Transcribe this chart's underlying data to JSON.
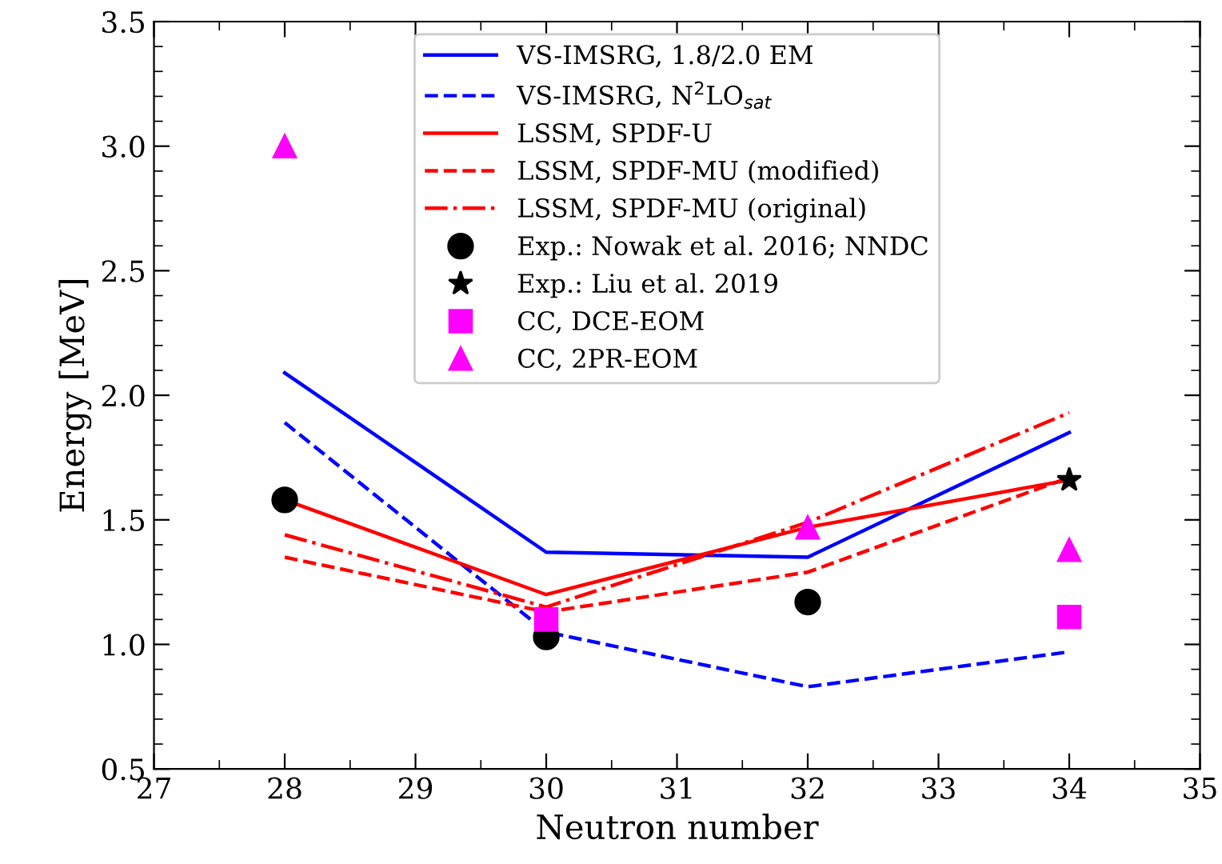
{
  "chart_data": {
    "type": "line",
    "xlabel": "Neutron number",
    "ylabel": "Energy [MeV]",
    "x": [
      28,
      30,
      32,
      34
    ],
    "xlim": [
      27,
      35
    ],
    "xticks": [
      27,
      28,
      29,
      30,
      31,
      32,
      33,
      34,
      35
    ],
    "ylim": [
      0.5,
      3.5
    ],
    "yticks": [
      {
        "value": 0.5,
        "label": "0.5"
      },
      {
        "value": 1,
        "label": "1.0"
      },
      {
        "value": 1.5,
        "label": "1.5"
      },
      {
        "value": 2,
        "label": "2.0"
      },
      {
        "value": 2.5,
        "label": "2.5"
      },
      {
        "value": 3,
        "label": "3.0"
      },
      {
        "value": 3.5,
        "label": "3.5"
      }
    ],
    "grid": false,
    "legend": "top",
    "series": [
      {
        "name": "VS-IMSRG, 1.8/2.0 EM",
        "color": "#0000ff",
        "line_style": "solid",
        "values": [
          2.09,
          1.37,
          1.35,
          1.85
        ]
      },
      {
        "name": "VS-IMSRG, N$^{2}$LO$_{sat}$",
        "color": "#0000ff",
        "line_style": "dashed",
        "values": [
          1.89,
          1.05,
          0.83,
          0.97
        ]
      },
      {
        "name": "LSSM, SPDF-U",
        "color": "#ff0000",
        "line_style": "solid",
        "values": [
          1.58,
          1.2,
          1.47,
          1.66
        ]
      },
      {
        "name": "LSSM, SPDF-MU (modified)",
        "color": "#ff0000",
        "line_style": "dashed",
        "values": [
          1.35,
          1.13,
          1.29,
          1.67
        ]
      },
      {
        "name": "LSSM, SPDF-MU (original)",
        "color": "#ff0000",
        "line_style": "dashdot",
        "values": [
          1.44,
          1.15,
          1.49,
          1.93
        ]
      },
      {
        "name": "Exp.: Nowak et al. 2016; NNDC",
        "type": "scatter",
        "marker": "circle",
        "color": "#000000",
        "x": [
          28,
          30,
          32
        ],
        "values": [
          1.58,
          1.03,
          1.17
        ]
      },
      {
        "name": "Exp.: Liu et al. 2019",
        "type": "scatter",
        "marker": "star",
        "color": "#000000",
        "x": [
          34
        ],
        "values": [
          1.66
        ]
      },
      {
        "name": "CC, DCE-EOM",
        "type": "scatter",
        "marker": "square",
        "color": "#ff00ff",
        "x": [
          30,
          34
        ],
        "values": [
          1.1,
          1.11
        ]
      },
      {
        "name": "CC, 2PR-EOM",
        "type": "scatter",
        "marker": "triangle",
        "color": "#ff00ff",
        "x": [
          28,
          32,
          34
        ],
        "values": [
          3.0,
          1.47,
          1.38
        ]
      }
    ]
  }
}
